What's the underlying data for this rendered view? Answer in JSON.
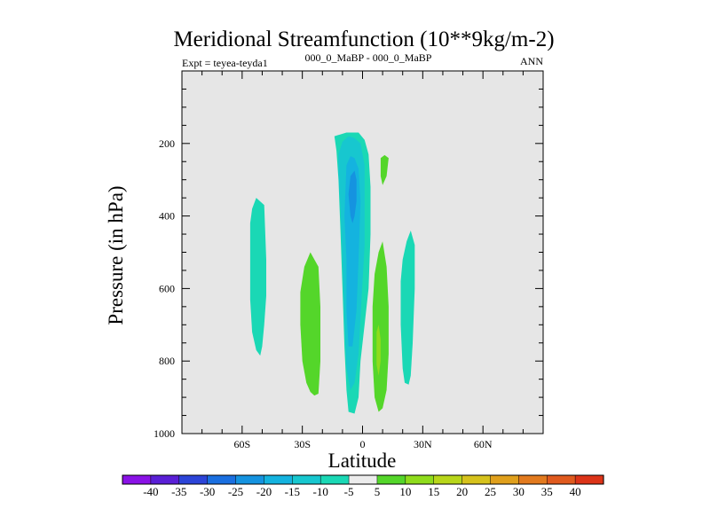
{
  "chart_data": {
    "type": "contour",
    "title": "Meridional Streamfunction (10**9kg/m-2)",
    "subtitle_left": "Expt = teyea-teyda1",
    "subtitle_center": "000_0_MaBP - 000_0_MaBP",
    "subtitle_right": "ANN",
    "xlabel": "Latitude",
    "ylabel": "Pressure (in hPa)",
    "xlim": [
      -90,
      90
    ],
    "ylim": [
      1000,
      0
    ],
    "x_ticks": [
      {
        "value": -60,
        "label": "60S"
      },
      {
        "value": -30,
        "label": "30S"
      },
      {
        "value": 0,
        "label": "0"
      },
      {
        "value": 30,
        "label": "30N"
      },
      {
        "value": 60,
        "label": "60N"
      }
    ],
    "y_ticks": [
      {
        "value": 200,
        "label": "200"
      },
      {
        "value": 400,
        "label": "400"
      },
      {
        "value": 600,
        "label": "600"
      },
      {
        "value": 800,
        "label": "800"
      },
      {
        "value": 1000,
        "label": "1000"
      }
    ],
    "background_color": "#e6e6e6",
    "colorbar": {
      "levels": [
        -40,
        -35,
        -30,
        -25,
        -20,
        -15,
        -10,
        -5,
        5,
        10,
        15,
        20,
        25,
        30,
        35,
        40
      ],
      "colors": [
        "#8a12e6",
        "#5a1fd6",
        "#2c44d8",
        "#1a6fe0",
        "#1593e0",
        "#14b3df",
        "#17c7cf",
        "#1ad8b5",
        "#ececec",
        "#54d62a",
        "#8fdc1c",
        "#b8d61a",
        "#d6c21c",
        "#e0a01c",
        "#e27a1e",
        "#e05a1e",
        "#dc3418"
      ]
    },
    "regions": [
      {
        "name": "southern-midlat-negative",
        "value_range": [
          -10,
          -5
        ],
        "color": "#1ad8b5",
        "polygon": [
          [
            -55,
            380
          ],
          [
            -53,
            350
          ],
          [
            -49,
            370
          ],
          [
            -48,
            520
          ],
          [
            -48,
            620
          ],
          [
            -49,
            700
          ],
          [
            -50,
            760
          ],
          [
            -51,
            785
          ],
          [
            -53,
            770
          ],
          [
            -55,
            720
          ],
          [
            -56,
            630
          ],
          [
            -56,
            500
          ],
          [
            -56,
            420
          ]
        ]
      },
      {
        "name": "southern-subtropic-positive",
        "value_range": [
          5,
          10
        ],
        "color": "#54d62a",
        "polygon": [
          [
            -29,
            540
          ],
          [
            -26,
            500
          ],
          [
            -22,
            540
          ],
          [
            -21,
            650
          ],
          [
            -21,
            800
          ],
          [
            -22,
            890
          ],
          [
            -24,
            895
          ],
          [
            -26,
            885
          ],
          [
            -28,
            860
          ],
          [
            -30,
            800
          ],
          [
            -31,
            700
          ],
          [
            -31,
            610
          ]
        ]
      },
      {
        "name": "equatorial-negative-outer",
        "value_range": [
          -10,
          -5
        ],
        "color": "#1ad8b5",
        "polygon": [
          [
            -14,
            180
          ],
          [
            -8,
            170
          ],
          [
            -2,
            170
          ],
          [
            1,
            190
          ],
          [
            3,
            230
          ],
          [
            4,
            320
          ],
          [
            4,
            450
          ],
          [
            3,
            600
          ],
          [
            1,
            700
          ],
          [
            -1,
            800
          ],
          [
            -2,
            900
          ],
          [
            -4,
            945
          ],
          [
            -7,
            940
          ],
          [
            -8,
            880
          ],
          [
            -9,
            760
          ],
          [
            -10,
            600
          ],
          [
            -11,
            440
          ],
          [
            -12,
            300
          ],
          [
            -13,
            220
          ]
        ]
      },
      {
        "name": "equatorial-negative-middle",
        "value_range": [
          -15,
          -10
        ],
        "color": "#17c7cf",
        "polygon": [
          [
            -12,
            230
          ],
          [
            -10,
            195
          ],
          [
            -7,
            180
          ],
          [
            -4,
            185
          ],
          [
            -1,
            200
          ],
          [
            1,
            260
          ],
          [
            1,
            360
          ],
          [
            1,
            480
          ],
          [
            0,
            580
          ],
          [
            -1,
            680
          ],
          [
            -2,
            780
          ],
          [
            -4,
            860
          ],
          [
            -6,
            880
          ],
          [
            -8,
            820
          ],
          [
            -9,
            680
          ],
          [
            -10,
            520
          ],
          [
            -11,
            380
          ],
          [
            -12,
            280
          ]
        ]
      },
      {
        "name": "equatorial-negative-inner",
        "value_range": [
          -20,
          -15
        ],
        "color": "#14b3df",
        "polygon": [
          [
            -8,
            260
          ],
          [
            -6,
            235
          ],
          [
            -4,
            240
          ],
          [
            -2,
            270
          ],
          [
            -1,
            360
          ],
          [
            -2,
            520
          ],
          [
            -3,
            660
          ],
          [
            -5,
            760
          ],
          [
            -7,
            760
          ],
          [
            -8,
            660
          ],
          [
            -8,
            520
          ],
          [
            -9,
            400
          ]
        ]
      },
      {
        "name": "equatorial-negative-core",
        "value_range": [
          -25,
          -20
        ],
        "color": "#1593e0",
        "polygon": [
          [
            -6,
            290
          ],
          [
            -4,
            275
          ],
          [
            -3,
            300
          ],
          [
            -3,
            360
          ],
          [
            -4,
            400
          ],
          [
            -5,
            420
          ],
          [
            -6,
            400
          ],
          [
            -7,
            340
          ]
        ]
      },
      {
        "name": "upper-tropic-positive",
        "value_range": [
          5,
          10
        ],
        "color": "#54d62a",
        "polygon": [
          [
            9,
            240
          ],
          [
            11,
            232
          ],
          [
            13,
            240
          ],
          [
            12,
            290
          ],
          [
            10,
            315
          ],
          [
            9,
            290
          ]
        ]
      },
      {
        "name": "northern-tropic-positive",
        "value_range": [
          5,
          10
        ],
        "color": "#54d62a",
        "polygon": [
          [
            10,
            470
          ],
          [
            12,
            540
          ],
          [
            13,
            650
          ],
          [
            13,
            780
          ],
          [
            12,
            880
          ],
          [
            10,
            930
          ],
          [
            8,
            940
          ],
          [
            6,
            900
          ],
          [
            5,
            800
          ],
          [
            5,
            650
          ],
          [
            6,
            560
          ],
          [
            8,
            500
          ]
        ]
      },
      {
        "name": "northern-tropic-core",
        "value_range": [
          10,
          15
        ],
        "color": "#8fdc1c",
        "polygon": [
          [
            7,
            720
          ],
          [
            8,
            700
          ],
          [
            9,
            740
          ],
          [
            9,
            800
          ],
          [
            8,
            840
          ],
          [
            7,
            810
          ]
        ]
      },
      {
        "name": "northern-subtropic-negative",
        "value_range": [
          -10,
          -5
        ],
        "color": "#1ad8b5",
        "polygon": [
          [
            24,
            440
          ],
          [
            26,
            480
          ],
          [
            26,
            600
          ],
          [
            25,
            750
          ],
          [
            24,
            840
          ],
          [
            23,
            865
          ],
          [
            21,
            860
          ],
          [
            20,
            820
          ],
          [
            19,
            700
          ],
          [
            19,
            580
          ],
          [
            20,
            520
          ],
          [
            22,
            470
          ]
        ]
      }
    ]
  }
}
